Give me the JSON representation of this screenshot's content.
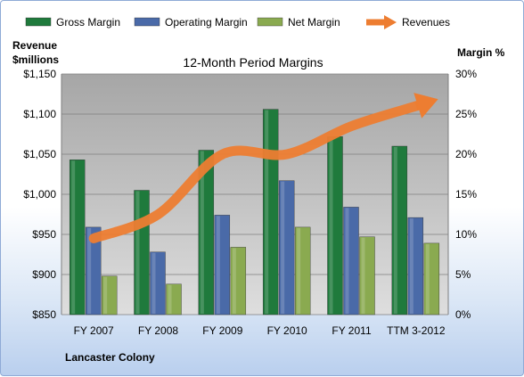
{
  "chart_data": {
    "type": "bar",
    "title": "12-Month Period Margins",
    "footer_label": "Lancaster Colony",
    "categories": [
      "FY 2007",
      "FY 2008",
      "FY 2009",
      "FY 2010",
      "FY 2011",
      "TTM 3-2012"
    ],
    "left_axis": {
      "label_line1": "Revenue",
      "label_line2": "$millions",
      "min": 850,
      "max": 1150,
      "step": 50,
      "tick_labels": [
        "$850",
        "$900",
        "$950",
        "$1,000",
        "$1,050",
        "$1,100",
        "$1,150"
      ]
    },
    "right_axis": {
      "label": "Margin %",
      "min": 0,
      "max": 30,
      "step": 5,
      "tick_labels": [
        "0%",
        "5%",
        "10%",
        "15%",
        "20%",
        "25%",
        "30%"
      ]
    },
    "series": [
      {
        "name": "Gross Margin",
        "axis": "right",
        "color": "#1f7a3c",
        "values": [
          19.3,
          15.5,
          20.5,
          25.6,
          22.2,
          21.0
        ]
      },
      {
        "name": "Operating Margin",
        "axis": "right",
        "color": "#4a6aa8",
        "values": [
          10.9,
          7.8,
          12.4,
          16.7,
          13.4,
          12.1
        ]
      },
      {
        "name": "Net Margin",
        "axis": "right",
        "color": "#8aaa50",
        "values": [
          4.8,
          3.8,
          8.4,
          10.9,
          9.7,
          8.9
        ]
      }
    ],
    "revenue_series": {
      "name": "Revenues",
      "axis": "left",
      "type": "line-arrow",
      "color": "#ed7d31",
      "values": [
        945,
        975,
        1050,
        1050,
        1085,
        1110
      ]
    },
    "legend_position": "top",
    "grid": true
  }
}
